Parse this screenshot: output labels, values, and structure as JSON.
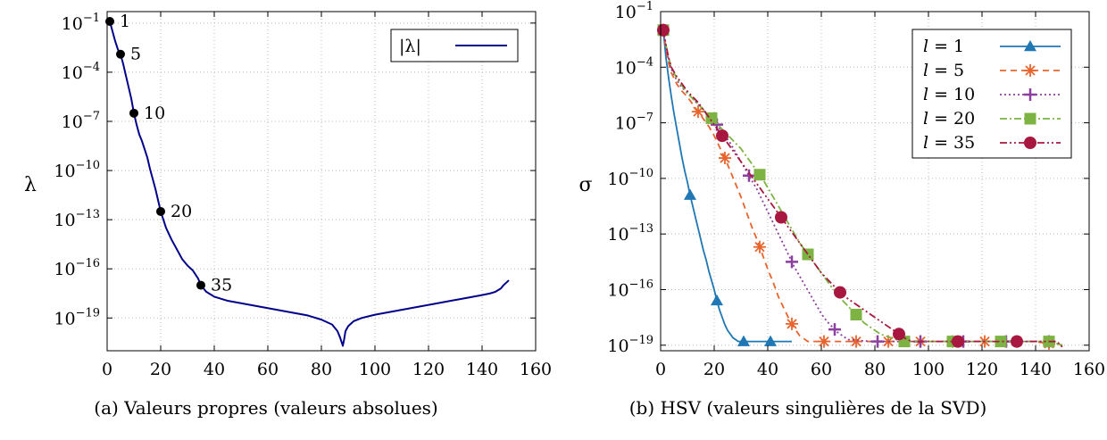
{
  "chart_data": [
    {
      "type": "line",
      "caption": "(a) Valeurs propres (valeurs absolues)",
      "ylabel": "λ",
      "xlabel": "",
      "xlim": [
        0,
        160
      ],
      "ylim_exp": [
        -21,
        -0.3
      ],
      "log_y": true,
      "grid": true,
      "legend_position": "top-right",
      "x_ticks": [
        "0",
        "20",
        "40",
        "60",
        "80",
        "100",
        "120",
        "140",
        "160"
      ],
      "y_ticks": [
        {
          "exp": -1,
          "label": "10",
          "sup": "−1"
        },
        {
          "exp": -4,
          "label": "10",
          "sup": "−4"
        },
        {
          "exp": -7,
          "label": "10",
          "sup": "−7"
        },
        {
          "exp": -10,
          "label": "10",
          "sup": "−10"
        },
        {
          "exp": -13,
          "label": "10",
          "sup": "−13"
        },
        {
          "exp": -16,
          "label": "10",
          "sup": "−16"
        },
        {
          "exp": -19,
          "label": "10",
          "sup": "−19"
        }
      ],
      "series": [
        {
          "name": "|λ|",
          "color": "#00008b",
          "x": [
            1,
            2,
            3,
            4,
            5,
            6,
            7,
            8,
            9,
            10,
            11,
            12,
            13,
            14,
            15,
            16,
            17,
            18,
            19,
            20,
            22,
            24,
            26,
            28,
            30,
            32,
            34,
            35,
            37,
            40,
            45,
            50,
            55,
            60,
            65,
            70,
            75,
            80,
            84,
            86,
            87,
            88,
            88.5,
            89,
            90,
            92,
            95,
            100,
            105,
            110,
            115,
            120,
            125,
            130,
            135,
            140,
            143,
            145,
            147,
            148,
            149,
            150
          ],
          "log10_y": [
            -0.9,
            -1.5,
            -2.1,
            -2.6,
            -2.9,
            -3.5,
            -4.2,
            -4.9,
            -5.6,
            -6.5,
            -7.2,
            -7.8,
            -8.2,
            -8.7,
            -9.2,
            -9.9,
            -10.5,
            -11.1,
            -11.8,
            -12.5,
            -13.5,
            -14.2,
            -14.8,
            -15.4,
            -15.8,
            -16.1,
            -16.6,
            -17.0,
            -17.4,
            -17.7,
            -17.95,
            -18.1,
            -18.25,
            -18.4,
            -18.55,
            -18.7,
            -18.85,
            -19.1,
            -19.4,
            -19.8,
            -20.2,
            -20.7,
            -20.3,
            -19.8,
            -19.5,
            -19.2,
            -19.0,
            -18.8,
            -18.65,
            -18.5,
            -18.35,
            -18.2,
            -18.05,
            -17.9,
            -17.75,
            -17.6,
            -17.5,
            -17.4,
            -17.2,
            -17.0,
            -16.85,
            -16.7
          ]
        }
      ],
      "annotations": [
        {
          "x": 1,
          "log10_y": -0.9,
          "label": "1"
        },
        {
          "x": 5,
          "log10_y": -2.9,
          "label": "5"
        },
        {
          "x": 10,
          "log10_y": -6.5,
          "label": "10"
        },
        {
          "x": 20,
          "log10_y": -12.5,
          "label": "20"
        },
        {
          "x": 35,
          "log10_y": -17.0,
          "label": "35"
        }
      ]
    },
    {
      "type": "line",
      "caption": "(b) HSV (valeurs singulières de la SVD)",
      "ylabel": "σ",
      "xlabel": "",
      "xlim": [
        0,
        160
      ],
      "ylim_exp": [
        -19.3,
        -1
      ],
      "log_y": true,
      "grid": true,
      "legend_position": "top-right",
      "x_ticks": [
        "0",
        "20",
        "40",
        "60",
        "80",
        "100",
        "120",
        "140",
        "160"
      ],
      "y_ticks": [
        {
          "exp": -1,
          "label": "10",
          "sup": "−1"
        },
        {
          "exp": -4,
          "label": "10",
          "sup": "−4"
        },
        {
          "exp": -7,
          "label": "10",
          "sup": "−7"
        },
        {
          "exp": -10,
          "label": "10",
          "sup": "−10"
        },
        {
          "exp": -13,
          "label": "10",
          "sup": "−13"
        },
        {
          "exp": -16,
          "label": "10",
          "sup": "−16"
        },
        {
          "exp": -19,
          "label": "10",
          "sup": "−19"
        }
      ],
      "series": [
        {
          "name": "l = 1",
          "name_var": "l",
          "name_val": "= 1",
          "color": "#1f77b4",
          "marker": "triangle",
          "dash": "",
          "x": [
            1,
            2,
            3,
            4,
            5,
            6,
            7,
            8,
            9,
            10,
            11,
            12,
            13,
            14,
            15,
            16,
            17,
            18,
            19,
            20,
            21,
            22,
            23,
            24,
            25,
            26,
            27,
            28,
            29,
            30,
            31,
            35,
            41,
            49
          ],
          "log10_y": [
            -2.0,
            -3.5,
            -4.6,
            -5.6,
            -6.5,
            -7.3,
            -8.1,
            -8.9,
            -9.6,
            -10.2,
            -10.9,
            -11.5,
            -12.1,
            -12.7,
            -13.3,
            -13.9,
            -14.4,
            -15.0,
            -15.5,
            -16.0,
            -16.6,
            -17.1,
            -17.5,
            -17.9,
            -18.2,
            -18.4,
            -18.6,
            -18.7,
            -18.8,
            -18.8,
            -18.8,
            -18.8,
            -18.8,
            -18.8
          ],
          "markers_x": [
            1,
            11,
            21,
            31,
            41
          ]
        },
        {
          "name": "l = 5",
          "name_var": "l",
          "name_val": "= 5",
          "color": "#e8642c",
          "marker": "asterisk",
          "dash": "7 5",
          "x": [
            1,
            2,
            3,
            4,
            6,
            8,
            10,
            12,
            14,
            16,
            18,
            20,
            22,
            24,
            26,
            28,
            30,
            32,
            34,
            36,
            38,
            40,
            42,
            44,
            46,
            48,
            50,
            52,
            55,
            58,
            61,
            70,
            79,
            85,
            95,
            103,
            121,
            139,
            150
          ],
          "log10_y": [
            -2.0,
            -3.0,
            -3.8,
            -4.3,
            -4.9,
            -5.3,
            -5.6,
            -6.0,
            -6.4,
            -6.8,
            -7.2,
            -7.7,
            -8.3,
            -8.9,
            -9.6,
            -10.3,
            -11.0,
            -11.8,
            -12.6,
            -13.3,
            -14.1,
            -14.9,
            -15.6,
            -16.4,
            -17.0,
            -17.6,
            -18.1,
            -18.5,
            -18.8,
            -18.8,
            -18.8,
            -18.8,
            -18.8,
            -18.8,
            -18.8,
            -18.8,
            -18.8,
            -18.8,
            -19.0
          ],
          "markers_x": [
            1,
            14,
            24,
            37,
            49,
            61,
            73,
            85,
            97,
            109,
            121,
            133,
            145
          ]
        },
        {
          "name": "l = 10",
          "name_var": "l",
          "name_val": "= 10",
          "color": "#8b3f9e",
          "marker": "plus",
          "dash": "2 3",
          "x": [
            1,
            2,
            3,
            4,
            6,
            8,
            10,
            12,
            14,
            16,
            18,
            20,
            22,
            24,
            26,
            28,
            30,
            32,
            34,
            36,
            38,
            40,
            42,
            44,
            46,
            48,
            50,
            52,
            54,
            56,
            58,
            60,
            62,
            64,
            66,
            68,
            70,
            79,
            85,
            97,
            109,
            121,
            133,
            145,
            150
          ],
          "log10_y": [
            -2.0,
            -2.9,
            -3.6,
            -4.1,
            -4.7,
            -5.1,
            -5.4,
            -5.7,
            -6.0,
            -6.3,
            -6.6,
            -6.9,
            -7.3,
            -7.7,
            -8.1,
            -8.6,
            -9.1,
            -9.6,
            -10.1,
            -10.6,
            -11.2,
            -11.8,
            -12.4,
            -13.0,
            -13.6,
            -14.2,
            -14.8,
            -15.3,
            -15.8,
            -16.3,
            -16.8,
            -17.3,
            -17.7,
            -18.0,
            -18.3,
            -18.5,
            -18.7,
            -18.8,
            -18.8,
            -18.8,
            -18.8,
            -18.8,
            -18.8,
            -18.8,
            -19.0
          ],
          "markers_x": [
            1,
            21,
            33,
            49,
            65,
            81,
            97,
            113,
            129,
            145
          ]
        },
        {
          "name": "l = 20",
          "name_var": "l",
          "name_val": "= 20",
          "color": "#7cb342",
          "marker": "square",
          "dash": "8 3 2 3",
          "x": [
            1,
            2,
            3,
            4,
            6,
            8,
            10,
            12,
            14,
            16,
            18,
            20,
            22,
            24,
            26,
            28,
            30,
            32,
            34,
            36,
            38,
            40,
            42,
            44,
            46,
            48,
            50,
            52,
            54,
            56,
            58,
            60,
            62,
            64,
            66,
            68,
            70,
            72,
            74,
            76,
            78,
            80,
            82,
            84,
            86,
            88,
            91,
            109,
            127,
            145,
            150
          ],
          "log10_y": [
            -2.0,
            -2.8,
            -3.5,
            -4.0,
            -4.6,
            -5.0,
            -5.4,
            -5.7,
            -6.0,
            -6.3,
            -6.6,
            -6.9,
            -7.2,
            -7.5,
            -7.8,
            -8.1,
            -8.4,
            -8.8,
            -9.2,
            -9.6,
            -10.0,
            -10.5,
            -11.0,
            -11.5,
            -12.0,
            -12.5,
            -13.0,
            -13.5,
            -13.9,
            -14.3,
            -14.7,
            -15.1,
            -15.5,
            -15.9,
            -16.2,
            -16.6,
            -16.9,
            -17.2,
            -17.5,
            -17.8,
            -18.0,
            -18.2,
            -18.4,
            -18.5,
            -18.6,
            -18.7,
            -18.8,
            -18.8,
            -18.8,
            -18.8,
            -19.0
          ],
          "markers_x": [
            1,
            19,
            37,
            55,
            73,
            91,
            109,
            127,
            145
          ]
        },
        {
          "name": "l = 35",
          "name_var": "l",
          "name_val": "= 35",
          "color": "#a8173f",
          "marker": "circle",
          "dash": "8 3 2 3 2 3",
          "x": [
            1,
            2,
            3,
            4,
            6,
            8,
            10,
            12,
            14,
            16,
            18,
            20,
            22,
            24,
            26,
            28,
            30,
            32,
            34,
            36,
            38,
            40,
            42,
            44,
            46,
            48,
            50,
            52,
            54,
            56,
            58,
            60,
            62,
            64,
            66,
            68,
            70,
            72,
            74,
            76,
            78,
            80,
            82,
            84,
            86,
            88,
            90,
            92,
            94,
            96,
            98,
            100,
            102,
            104,
            106,
            108,
            111,
            133,
            148,
            150
          ],
          "log10_y": [
            -2.0,
            -2.8,
            -3.5,
            -4.0,
            -4.5,
            -4.9,
            -5.3,
            -5.6,
            -5.9,
            -6.3,
            -6.7,
            -7.1,
            -7.5,
            -7.9,
            -8.3,
            -8.7,
            -9.1,
            -9.5,
            -9.9,
            -10.3,
            -10.7,
            -11.1,
            -11.5,
            -11.9,
            -12.3,
            -12.7,
            -13.1,
            -13.5,
            -13.9,
            -14.3,
            -14.7,
            -15.1,
            -15.4,
            -15.7,
            -16.0,
            -16.3,
            -16.5,
            -16.7,
            -16.9,
            -17.1,
            -17.3,
            -17.5,
            -17.7,
            -17.9,
            -18.1,
            -18.3,
            -18.5,
            -18.7,
            -18.8,
            -18.8,
            -18.8,
            -18.8,
            -18.8,
            -18.8,
            -18.8,
            -18.8,
            -18.8,
            -18.8,
            -18.8,
            -19.1
          ],
          "markers_x": [
            1,
            23,
            45,
            67,
            89,
            111,
            133
          ]
        }
      ]
    }
  ]
}
